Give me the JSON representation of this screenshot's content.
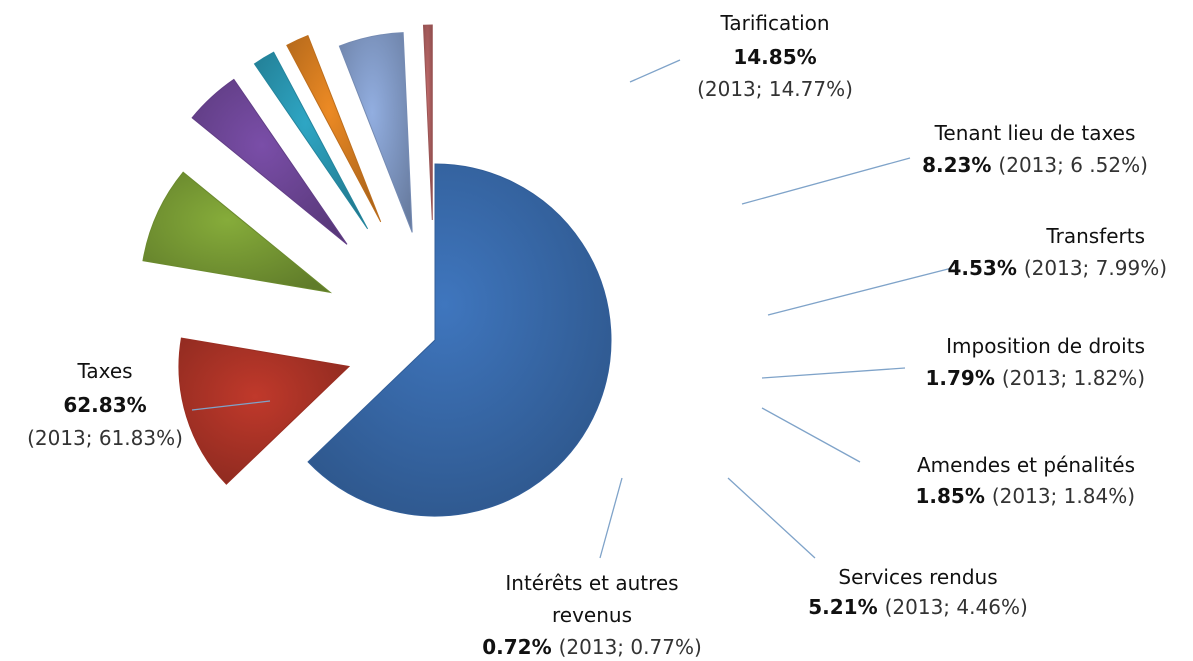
{
  "chart_data": {
    "type": "pie",
    "exploded": true,
    "slices": [
      {
        "name": "Taxes",
        "value": 62.83,
        "label_pct": "62.83%",
        "label_prev": "(2013; 61.83%)",
        "color": "#3f76be"
      },
      {
        "name": "Tarification",
        "value": 14.85,
        "label_pct": "14.85%",
        "label_prev": "(2013; 14.77%)",
        "color": "#c0392b"
      },
      {
        "name": "Tenant lieu de taxes",
        "value": 8.23,
        "label_pct": "8.23%",
        "label_prev": "(2013; 6 .52%)",
        "color": "#86ac3a"
      },
      {
        "name": "Transferts",
        "value": 4.53,
        "label_pct": "4.53%",
        "label_prev": "(2013; 7.99%)",
        "color": "#7a4ea8"
      },
      {
        "name": "Imposition de droits",
        "value": 1.79,
        "label_pct": "1.79%",
        "label_prev": "(2013; 1.82%)",
        "color": "#2ea6c4"
      },
      {
        "name": "Amendes et pénalités",
        "value": 1.85,
        "label_pct": "1.85%",
        "label_prev": "(2013; 1.84%)",
        "color": "#ec8a24"
      },
      {
        "name": "Services rendus",
        "value": 5.21,
        "label_pct": "5.21%",
        "label_prev": "(2013; 4.46%)",
        "color": "#92aee0"
      },
      {
        "name": "Intérêts et autres revenus",
        "value": 0.72,
        "label_pct": "0.72%",
        "label_prev": "(2013; 0.77%)",
        "color": "#c06a6a"
      }
    ]
  }
}
